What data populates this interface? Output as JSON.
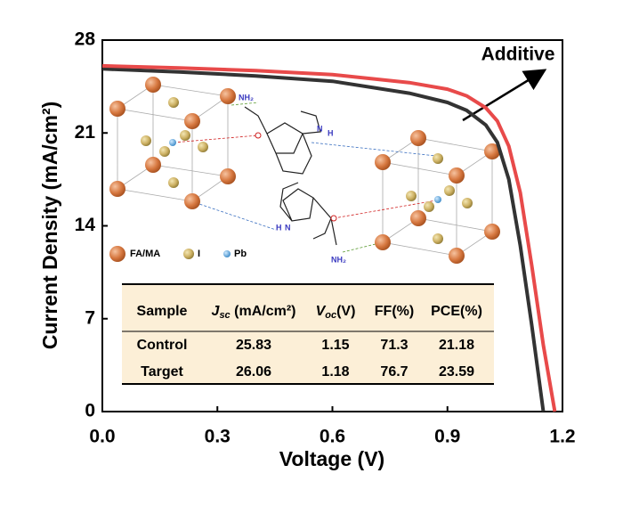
{
  "chart_data": {
    "type": "line",
    "xlabel": "Voltage (V)",
    "ylabel": "Current Density (mA/cm²)",
    "annotation": "Additive",
    "x": [
      0,
      0.2,
      0.4,
      0.6,
      0.8,
      0.9,
      0.95,
      1.0,
      1.03,
      1.06,
      1.09,
      1.12,
      1.15,
      1.18
    ],
    "series": [
      {
        "color": "#333333",
        "values": [
          25.83,
          25.6,
          25.3,
          24.9,
          24.0,
          23.3,
          22.7,
          21.6,
          20.3,
          17.5,
          12.5,
          6.5,
          0,
          null
        ]
      },
      {
        "color": "#e84a4a",
        "values": [
          26.06,
          25.9,
          25.7,
          25.4,
          24.8,
          24.3,
          23.8,
          22.9,
          21.9,
          20.0,
          16.5,
          11.0,
          5.0,
          0
        ]
      }
    ],
    "xlim": [
      0,
      1.2
    ],
    "xticks": [
      {
        "value": 0,
        "label": "0.0"
      },
      0.3,
      0.6,
      0.9,
      1.2
    ],
    "ylim": [
      0,
      28
    ],
    "yticks": [
      0,
      7,
      14,
      21,
      28
    ],
    "inset": {
      "legend": [
        "FA/MA",
        "I",
        "Pb"
      ],
      "molecule_labels": [
        "NH₂",
        "H",
        "N",
        "NH₂",
        "N",
        "H"
      ]
    },
    "table": {
      "header": {
        "sample": "Sample",
        "jsc_sym": "J",
        "jsc_sub": "sc",
        "jsc_unit": " (mA/cm²)",
        "voc_sym": "V",
        "voc_sub": "oc",
        "voc_unit": "(V)",
        "ff": "FF(%)",
        "pce": "PCE(%)"
      },
      "rows": [
        [
          "Control",
          "25.83",
          "1.15",
          "71.3",
          "21.18"
        ],
        [
          "Target",
          "26.06",
          "1.18",
          "76.7",
          "23.59"
        ]
      ]
    }
  }
}
